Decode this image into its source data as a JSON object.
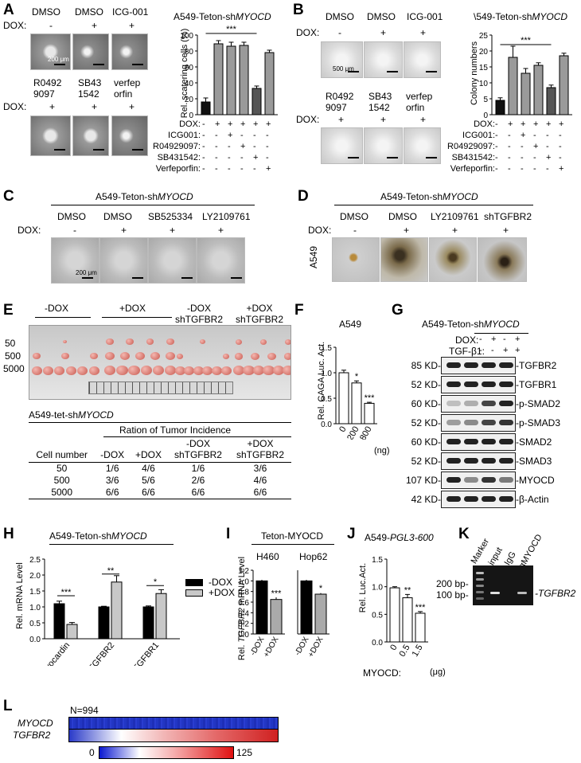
{
  "panels": {
    "A": {
      "letter": "A",
      "cond_top": [
        "DMSO",
        "DMSO",
        "ICG-001"
      ],
      "cond_bottom": [
        "R0492\n9097",
        "SB43\n1542",
        "verfep\norfin"
      ],
      "dox_label": "DOX:",
      "dox_top": [
        "-",
        "+",
        "+"
      ],
      "dox_bottom": [
        "+",
        "+",
        "+"
      ],
      "scale_label": "200 μm",
      "chart_title": "A549-Teton-shMYOCD",
      "chart_title_plain": "A549-Teton-sh",
      "chart_title_ital": "MYOCD",
      "ylabel": "Rel. scatering cells (%)",
      "yticks": [
        "0",
        "20",
        "40",
        "60",
        "80",
        "100"
      ],
      "sig": "***",
      "rows": [
        {
          "label": "DOX:",
          "signs": [
            "-",
            "+",
            "+",
            "+",
            "+",
            "+"
          ]
        },
        {
          "label": "ICG001:",
          "signs": [
            "-",
            "-",
            "+",
            "-",
            "-",
            "-"
          ]
        },
        {
          "label": "R04929097:",
          "signs": [
            "-",
            "-",
            "-",
            "+",
            "-",
            "-"
          ]
        },
        {
          "label": "SB431542:",
          "signs": [
            "-",
            "-",
            "-",
            "-",
            "+",
            "-"
          ]
        },
        {
          "label": "Verfeporfin:",
          "signs": [
            "-",
            "-",
            "-",
            "-",
            "-",
            "+"
          ]
        }
      ]
    },
    "B": {
      "letter": "B",
      "cond_top": [
        "DMSO",
        "DMSO",
        "ICG-001"
      ],
      "cond_bottom": [
        "R0492\n9097",
        "SB43\n1542",
        "verfep\norfin"
      ],
      "dox_label": "DOX:",
      "dox_top": [
        "-",
        "+",
        "+"
      ],
      "dox_bottom": [
        "+",
        "+",
        "+"
      ],
      "scale_label": "500 μm",
      "chart_title_plain": "\\549-Teton-sh",
      "chart_title_ital": "MYOCD",
      "ylabel": "Colony numbers",
      "yticks": [
        "0",
        "5",
        "10",
        "15",
        "20",
        "25"
      ],
      "sig": "***",
      "rows": [
        {
          "label": "DOX:",
          "signs": [
            "-",
            "+",
            "+",
            "+",
            "+",
            "+"
          ]
        },
        {
          "label": "ICG001:",
          "signs": [
            "-",
            "-",
            "+",
            "-",
            "-",
            "-"
          ]
        },
        {
          "label": "R04929097:",
          "signs": [
            "-",
            "-",
            "-",
            "+",
            "-",
            "-"
          ]
        },
        {
          "label": "SB431542:",
          "signs": [
            "-",
            "-",
            "-",
            "-",
            "+",
            "-"
          ]
        },
        {
          "label": "Verfeporfin:",
          "signs": [
            "-",
            "-",
            "-",
            "-",
            "-",
            "+"
          ]
        }
      ]
    },
    "C": {
      "letter": "C",
      "title_plain": "A549-Teton-sh",
      "title_ital": "MYOCD",
      "conds": [
        "DMSO",
        "DMSO",
        "SB525334",
        "LY2109761"
      ],
      "dox_label": "DOX:",
      "dox": [
        "-",
        "+",
        "+",
        "+"
      ],
      "scale_label": "200 μm"
    },
    "D": {
      "letter": "D",
      "title_plain": "A549-Teton-sh",
      "title_ital": "MYOCD",
      "conds": [
        "DMSO",
        "DMSO",
        "LY2109761",
        "shTGFBR2"
      ],
      "dox_label": "DOX:",
      "dox": [
        "-",
        "+",
        "+",
        "+"
      ],
      "side_label": "A549"
    },
    "E": {
      "letter": "E",
      "groups": [
        "-DOX",
        "+DOX",
        "-DOX\nshTGFBR2",
        "+DOX\nshTGFBR2"
      ],
      "row_labels": [
        "50",
        "500",
        "5000"
      ],
      "table_title_plain": "A549-tet-sh",
      "table_title_ital": "MYOCD",
      "table_caption": "Ration of Tumor Incidence",
      "headers": [
        "Cell number",
        "-DOX",
        "+DOX",
        "-DOX\nshTGFBR2",
        "+DOX\nshTGFBR2"
      ],
      "rows": [
        [
          "50",
          "1/6",
          "4/6",
          "1/6",
          "3/6"
        ],
        [
          "500",
          "3/6",
          "5/6",
          "2/6",
          "4/6"
        ],
        [
          "5000",
          "6/6",
          "6/6",
          "6/6",
          "6/6"
        ]
      ]
    },
    "F": {
      "letter": "F",
      "title": "A549",
      "ylabel": "Rel. CAGA Luc. Act.",
      "yticks": [
        "0.0",
        "0.5",
        "1.0",
        "1.5"
      ],
      "xunit": "(ng)",
      "sig": [
        "",
        "*",
        "***"
      ]
    },
    "G": {
      "letter": "G",
      "title_plain": "A549-Teton-sh",
      "title_ital": "MYOCD",
      "dox_label": "DOX:",
      "dox": [
        "-",
        "+",
        "-",
        "+"
      ],
      "tgf_label": "TGF-β1:",
      "tgf": [
        "-",
        "-",
        "+",
        "+"
      ],
      "blots": [
        {
          "kd": "85 KD-",
          "name": "-TGFBR2"
        },
        {
          "kd": "52 KD-",
          "name": "-TGFBR1"
        },
        {
          "kd": "60 KD-",
          "name": "-p-SMAD2"
        },
        {
          "kd": "52 KD-",
          "name": "-p-SMAD3"
        },
        {
          "kd": "60 KD-",
          "name": "-SMAD2"
        },
        {
          "kd": "52 KD-",
          "name": "-SMAD3"
        },
        {
          "kd": "107 KD-",
          "name": "-MYOCD"
        },
        {
          "kd": "42 KD-",
          "name": "-β-Actin"
        }
      ]
    },
    "H": {
      "letter": "H",
      "title_plain": "A549-Teton-sh",
      "title_ital": "MYOCD",
      "ylabel": "Rel. mRNA Level",
      "yticks": [
        "0.0",
        "0.5",
        "1.0",
        "1.5",
        "2.0",
        "2.5"
      ],
      "sig": [
        "***",
        "**",
        "*"
      ],
      "legend": [
        "-DOX",
        "+DOX"
      ]
    },
    "I": {
      "letter": "I",
      "title": "Teton-MYOCD",
      "sub": [
        "H460",
        "Hop62"
      ],
      "ylabel_pre": "Rel. ",
      "ylabel_ital": "TGFBR2",
      "ylabel_post": " mRNA Level",
      "yticks": [
        "0.0",
        "0.2",
        "0.4",
        "0.6",
        "0.8",
        "1.0",
        "1.2"
      ],
      "sig": [
        "***",
        "*"
      ],
      "xlabels": [
        "-DOX",
        "+DOX"
      ]
    },
    "J": {
      "letter": "J",
      "title_plain": "A549-",
      "title_ital": "PGL3-600",
      "ylabel": "Rel. Luc.Act.",
      "yticks": [
        "0.0",
        "0.5",
        "1.0",
        "1.5"
      ],
      "sig": [
        "",
        "**",
        "***"
      ],
      "xlabel": "MYOCD:",
      "xunit": "(μg)"
    },
    "K": {
      "letter": "K",
      "lanes": [
        "Marker",
        "input",
        "IgG",
        "αMYOCD"
      ],
      "markers": [
        "200 bp-",
        "100 bp-"
      ],
      "gene": "-TGFBR2"
    },
    "L": {
      "letter": "L",
      "n_label": "N=994",
      "rows": [
        "MYOCD",
        "TGFBR2"
      ],
      "scale": [
        "0",
        "125"
      ]
    }
  },
  "chart_data": [
    {
      "type": "bar",
      "title": "A549-Teton-shMYOCD",
      "ylabel": "Rel. scatering cells (%)",
      "ylim": [
        0,
        100
      ],
      "categories": [
        "1",
        "2",
        "3",
        "4",
        "5",
        "6"
      ],
      "values": [
        16,
        89,
        86,
        87,
        33,
        78
      ],
      "errors": [
        5,
        4,
        5,
        4,
        3,
        3
      ],
      "colors": [
        "#111111",
        "#9a9a9a",
        "#9a9a9a",
        "#9a9a9a",
        "#555555",
        "#9a9a9a"
      ]
    },
    {
      "type": "bar",
      "title": "A549-Teton-shMYOCD",
      "ylabel": "Colony numbers",
      "ylim": [
        0,
        25
      ],
      "categories": [
        "1",
        "2",
        "3",
        "4",
        "5",
        "6"
      ],
      "values": [
        4.5,
        18,
        13,
        15.5,
        8.5,
        18.5
      ],
      "errors": [
        0.8,
        3.5,
        1.5,
        0.8,
        0.8,
        0.8
      ],
      "colors": [
        "#111111",
        "#9a9a9a",
        "#9a9a9a",
        "#9a9a9a",
        "#555555",
        "#9a9a9a"
      ]
    },
    {
      "type": "bar",
      "title": "A549",
      "ylabel": "Rel. CAGA Luc. Act.",
      "ylim": [
        0,
        1.5
      ],
      "categories": [
        "0",
        "200",
        "800"
      ],
      "values": [
        1.0,
        0.8,
        0.4
      ],
      "errors": [
        0.05,
        0.04,
        0.02
      ]
    },
    {
      "type": "bar",
      "title": "A549-Teton-shMYOCD",
      "ylabel": "Rel. mRNA Level",
      "ylim": [
        0,
        2.5
      ],
      "categories": [
        "Myocardin",
        "TGFBR2",
        "TGFBR1"
      ],
      "series": [
        {
          "name": "-DOX",
          "values": [
            1.1,
            1.0,
            1.0
          ],
          "errors": [
            0.08,
            0.02,
            0.03
          ]
        },
        {
          "name": "+DOX",
          "values": [
            0.45,
            1.78,
            1.42
          ],
          "errors": [
            0.06,
            0.2,
            0.12
          ]
        }
      ]
    },
    {
      "type": "bar",
      "title": "H460",
      "ylim": [
        0,
        1.2
      ],
      "categories": [
        "-DOX",
        "+DOX"
      ],
      "values": [
        1.0,
        0.65
      ],
      "errors": [
        0.02,
        0.04
      ]
    },
    {
      "type": "bar",
      "title": "Hop62",
      "ylim": [
        0,
        1.2
      ],
      "categories": [
        "-DOX",
        "+DOX"
      ],
      "values": [
        1.0,
        0.75
      ],
      "errors": [
        0.02,
        0.02
      ]
    },
    {
      "type": "bar",
      "title": "A549-PGL3-600",
      "ylabel": "Rel. Luc.Act.",
      "ylim": [
        0,
        1.5
      ],
      "categories": [
        "0",
        "0.5",
        "1.5"
      ],
      "values": [
        0.98,
        0.8,
        0.52
      ],
      "errors": [
        0.02,
        0.06,
        0.03
      ]
    }
  ]
}
